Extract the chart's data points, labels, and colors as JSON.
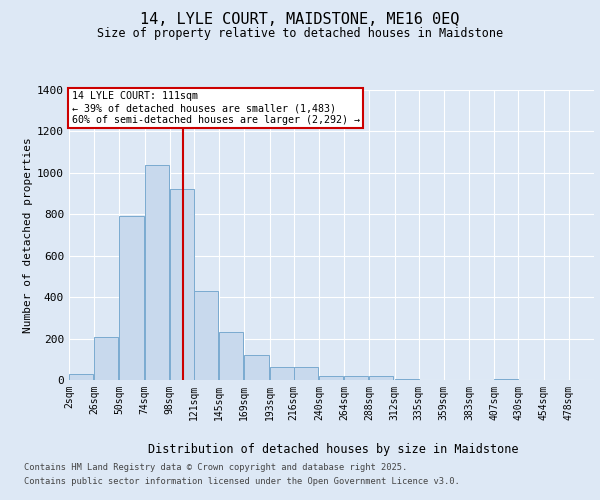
{
  "title": "14, LYLE COURT, MAIDSTONE, ME16 0EQ",
  "subtitle": "Size of property relative to detached houses in Maidstone",
  "xlabel": "Distribution of detached houses by size in Maidstone",
  "ylabel": "Number of detached properties",
  "bar_color": "#c8d9ed",
  "bar_edge_color": "#7aaad0",
  "background_color": "#dde8f5",
  "grid_color": "#ffffff",
  "fig_background": "#dde8f5",
  "bin_labels": [
    "2sqm",
    "26sqm",
    "50sqm",
    "74sqm",
    "98sqm",
    "121sqm",
    "145sqm",
    "169sqm",
    "193sqm",
    "216sqm",
    "240sqm",
    "264sqm",
    "288sqm",
    "312sqm",
    "335sqm",
    "359sqm",
    "383sqm",
    "407sqm",
    "430sqm",
    "454sqm",
    "478sqm"
  ],
  "bin_starts": [
    2,
    26,
    50,
    74,
    98,
    121,
    145,
    169,
    193,
    216,
    240,
    264,
    288,
    312,
    335,
    359,
    383,
    407,
    430,
    454,
    478
  ],
  "bar_values": [
    30,
    210,
    790,
    1040,
    920,
    430,
    230,
    120,
    65,
    65,
    20,
    20,
    20,
    5,
    0,
    0,
    0,
    5,
    0,
    0,
    0
  ],
  "ylim": [
    0,
    1400
  ],
  "yticks": [
    0,
    200,
    400,
    600,
    800,
    1000,
    1200,
    1400
  ],
  "property_sqm": 111,
  "annotation_title": "14 LYLE COURT: 111sqm",
  "annotation_line1": "← 39% of detached houses are smaller (1,483)",
  "annotation_line2": "60% of semi-detached houses are larger (2,292) →",
  "vline_color": "#cc0000",
  "annotation_box_edge": "#cc0000",
  "footer_line1": "Contains HM Land Registry data © Crown copyright and database right 2025.",
  "footer_line2": "Contains public sector information licensed under the Open Government Licence v3.0."
}
